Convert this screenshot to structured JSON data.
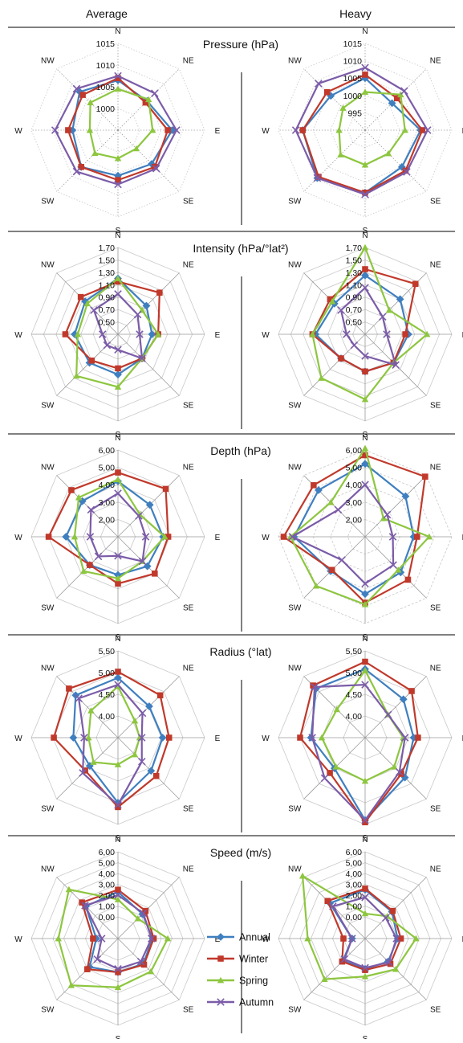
{
  "column_titles": [
    "Average",
    "Heavy"
  ],
  "directions": [
    "N",
    "NE",
    "E",
    "SE",
    "S",
    "SW",
    "W",
    "NW"
  ],
  "colors": {
    "Annual": "#3f7fbf",
    "Winter": "#c0392b",
    "Spring": "#8dc63f",
    "Autumn": "#7b5ca8",
    "grid": "#c8c8c8",
    "divider": "#000000"
  },
  "legend": [
    {
      "name": "Annual",
      "marker": "diamond",
      "color": "#3f7fbf"
    },
    {
      "name": "Winter",
      "marker": "square",
      "color": "#c0392b"
    },
    {
      "name": "Spring",
      "marker": "triangle",
      "color": "#8dc63f"
    },
    {
      "name": "Autumn",
      "marker": "x",
      "color": "#7b5ca8"
    }
  ],
  "chart_data": [
    {
      "type": "radar",
      "title": "Pressure (hPa)",
      "column": "Average",
      "categories": [
        "N",
        "NE",
        "E",
        "SE",
        "S",
        "SW",
        "W",
        "NW"
      ],
      "range": [
        995,
        1015
      ],
      "tick_labels": [
        "1000",
        "1005",
        "1010",
        "1015"
      ],
      "grid": "dotted-axes",
      "series": [
        {
          "name": "Annual",
          "values": [
            1006.5,
            1004.5,
            1007.5,
            1006,
            1005.5,
            1007,
            1005.5,
            1007.5
          ]
        },
        {
          "name": "Winter",
          "values": [
            1007,
            1004,
            1006.5,
            1007,
            1006.5,
            1007,
            1006.5,
            1006.5
          ]
        },
        {
          "name": "Spring",
          "values": [
            1004.5,
            1005,
            1003,
            1001,
            1001.5,
            1002.5,
            1001.5,
            1004
          ]
        },
        {
          "name": "Autumn",
          "values": [
            1007.5,
            1007,
            1008.5,
            1007.5,
            1007.5,
            1008.5,
            1009.5,
            1008.5
          ]
        }
      ]
    },
    {
      "type": "radar",
      "title": "",
      "column": "Heavy",
      "categories": [
        "N",
        "NE",
        "E",
        "SE",
        "S",
        "SW",
        "W",
        "NW"
      ],
      "range": [
        990,
        1015
      ],
      "tick_labels": [
        "995",
        "1000",
        "1005",
        "1010",
        "1015"
      ],
      "grid": "dotted-axes",
      "series": [
        {
          "name": "Annual",
          "values": [
            1005,
            1001,
            1006,
            1005,
            1008,
            1009.5,
            1008,
            1004
          ]
        },
        {
          "name": "Winter",
          "values": [
            1006,
            1003,
            1006.5,
            1006.5,
            1008,
            1009,
            1008,
            1005.5
          ]
        },
        {
          "name": "Spring",
          "values": [
            1001,
            1004.5,
            1001.5,
            999.5,
            1000,
            1000,
            997.5,
            999
          ]
        },
        {
          "name": "Autumn",
          "values": [
            1008,
            1006,
            1008,
            1007,
            1008.5,
            1009.5,
            1010,
            1009
          ]
        }
      ]
    },
    {
      "type": "radar",
      "title": "Intensity (hPa/°lat²)",
      "column": "Average",
      "categories": [
        "N",
        "NE",
        "E",
        "SE",
        "S",
        "SW",
        "W",
        "NW"
      ],
      "range": [
        0.3,
        1.7
      ],
      "tick_labels": [
        "0,50",
        "0,70",
        "0,90",
        "1,10",
        "1,30",
        "1,50",
        "1,70"
      ],
      "grid": "polygon",
      "series": [
        {
          "name": "Annual",
          "values": [
            1.2,
            0.95,
            0.85,
            0.85,
            0.95,
            0.95,
            1.0,
            1.05
          ]
        },
        {
          "name": "Winter",
          "values": [
            1.15,
            1.25,
            0.95,
            0.85,
            0.85,
            0.9,
            1.15,
            1.15
          ]
        },
        {
          "name": "Spring",
          "values": [
            1.2,
            0.85,
            0.95,
            0.85,
            1.15,
            1.25,
            0.95,
            1.0
          ]
        },
        {
          "name": "Autumn",
          "values": [
            0.95,
            0.75,
            0.65,
            0.85,
            0.55,
            0.55,
            0.55,
            0.85
          ]
        }
      ]
    },
    {
      "type": "radar",
      "title": "",
      "column": "Heavy",
      "categories": [
        "N",
        "NE",
        "E",
        "SE",
        "S",
        "SW",
        "W",
        "NW"
      ],
      "range": [
        0.3,
        1.7
      ],
      "tick_labels": [
        "0,50",
        "0,70",
        "0,90",
        "1,10",
        "1,30",
        "1,50",
        "1,70"
      ],
      "grid": "polygon",
      "series": [
        {
          "name": "Annual",
          "values": [
            1.25,
            1.1,
            1.0,
            0.95,
            0.9,
            0.85,
            1.1,
            1.0
          ]
        },
        {
          "name": "Winter",
          "values": [
            1.35,
            1.45,
            0.95,
            0.95,
            0.9,
            0.85,
            1.15,
            1.1
          ]
        },
        {
          "name": "Spring",
          "values": [
            1.7,
            0.85,
            1.3,
            0.95,
            1.35,
            1.3,
            1.15,
            1.05
          ]
        },
        {
          "name": "Autumn",
          "values": [
            1.05,
            0.7,
            0.65,
            1.0,
            0.65,
            0.55,
            0.6,
            0.85
          ]
        }
      ]
    },
    {
      "type": "radar",
      "title": "Depth (hPa)",
      "column": "Average",
      "categories": [
        "N",
        "NE",
        "E",
        "SE",
        "S",
        "SW",
        "W",
        "NW"
      ],
      "range": [
        1.0,
        6.0
      ],
      "tick_labels": [
        "2,00",
        "3,00",
        "4,00",
        "5,00",
        "6,00"
      ],
      "grid": "polygon",
      "series": [
        {
          "name": "Annual",
          "values": [
            4.2,
            3.6,
            3.6,
            3.4,
            3.2,
            3.3,
            4.0,
            3.9
          ]
        },
        {
          "name": "Winter",
          "values": [
            4.7,
            4.9,
            3.9,
            4.0,
            3.7,
            3.3,
            5.0,
            4.8
          ]
        },
        {
          "name": "Spring",
          "values": [
            4.3,
            2.8,
            3.7,
            3.0,
            3.4,
            3.8,
            3.5,
            4.2
          ]
        },
        {
          "name": "Autumn",
          "values": [
            3.5,
            2.7,
            2.6,
            3.0,
            2.1,
            2.6,
            2.6,
            3.2
          ]
        }
      ]
    },
    {
      "type": "radar",
      "title": "",
      "column": "Heavy",
      "categories": [
        "N",
        "NE",
        "E",
        "SE",
        "S",
        "SW",
        "W",
        "NW"
      ],
      "range": [
        1.0,
        6.0
      ],
      "tick_labels": [
        "2,00",
        "3,00",
        "4,00",
        "5,00",
        "6,00"
      ],
      "grid": "dashed-polygon",
      "series": [
        {
          "name": "Annual",
          "values": [
            5.2,
            4.3,
            3.8,
            3.9,
            4.3,
            3.8,
            5.1,
            4.8
          ]
        },
        {
          "name": "Winter",
          "values": [
            5.7,
            5.9,
            4.0,
            4.5,
            4.8,
            3.7,
            5.7,
            5.2
          ]
        },
        {
          "name": "Spring",
          "values": [
            6.1,
            2.5,
            4.7,
            3.7,
            4.9,
            5.0,
            5.3,
            3.8
          ]
        },
        {
          "name": "Autumn",
          "values": [
            4.0,
            2.8,
            2.6,
            3.3,
            3.7,
            2.9,
            5.2,
            3.2
          ]
        }
      ]
    },
    {
      "type": "radar",
      "title": "Radius (°lat)",
      "column": "Average",
      "categories": [
        "N",
        "NE",
        "E",
        "SE",
        "S",
        "SW",
        "W",
        "NW"
      ],
      "range": [
        3.5,
        5.5
      ],
      "tick_labels": [
        "4,00",
        "4,50",
        "5,00",
        "5,50"
      ],
      "grid": "polygon",
      "series": [
        {
          "name": "Annual",
          "values": [
            4.88,
            4.52,
            4.53,
            4.58,
            5.0,
            4.42,
            4.53,
            4.88
          ]
        },
        {
          "name": "Winter",
          "values": [
            5.02,
            4.88,
            4.68,
            4.75,
            5.1,
            4.57,
            4.98,
            5.1
          ]
        },
        {
          "name": "Spring",
          "values": [
            4.68,
            4.05,
            4.0,
            4.05,
            4.12,
            4.3,
            4.18,
            4.38
          ]
        },
        {
          "name": "Autumn",
          "values": [
            4.72,
            4.3,
            4.05,
            4.28,
            5.05,
            4.65,
            4.28,
            4.78
          ]
        }
      ]
    },
    {
      "type": "radar",
      "title": "",
      "column": "Heavy",
      "categories": [
        "N",
        "NE",
        "E",
        "SE",
        "S",
        "SW",
        "W",
        "NW"
      ],
      "range": [
        3.5,
        5.5
      ],
      "tick_labels": [
        "4,00",
        "4,50",
        "5,00",
        "5,50"
      ],
      "grid": "polygon",
      "series": [
        {
          "name": "Annual",
          "values": [
            5.08,
            4.75,
            4.62,
            4.8,
            5.4,
            4.5,
            4.75,
            5.1
          ]
        },
        {
          "name": "Winter",
          "values": [
            5.25,
            5.02,
            4.72,
            4.68,
            5.45,
            4.65,
            5.0,
            5.2
          ]
        },
        {
          "name": "Spring",
          "values": [
            5.05,
            4.25,
            4.38,
            4.45,
            4.5,
            4.45,
            4.5,
            4.42
          ]
        },
        {
          "name": "Autumn",
          "values": [
            4.72,
            4.25,
            4.42,
            4.62,
            5.4,
            4.82,
            4.72,
            5.15
          ]
        }
      ]
    },
    {
      "type": "radar",
      "title": "Speed (m/s)",
      "column": "Average",
      "categories": [
        "N",
        "NE",
        "E",
        "SE",
        "S",
        "SW",
        "W",
        "NW"
      ],
      "range": [
        -2.0,
        6.0
      ],
      "tick_labels": [
        "0,00",
        "1,00",
        "2,00",
        "3,00",
        "4,00",
        "5,00",
        "6,00"
      ],
      "grid": "polygon",
      "series": [
        {
          "name": "Annual",
          "values": [
            2.3,
            1.2,
            1.2,
            1.3,
            1.1,
            1.7,
            0.0,
            2.2
          ]
        },
        {
          "name": "Winter",
          "values": [
            2.5,
            1.6,
            1.3,
            1.4,
            1.1,
            2.0,
            0.3,
            2.7
          ]
        },
        {
          "name": "Spring",
          "values": [
            1.6,
            0.6,
            2.6,
            2.3,
            2.5,
            4.1,
            3.5,
            4.4
          ]
        },
        {
          "name": "Autumn",
          "values": [
            2.0,
            1.3,
            1.1,
            1.0,
            0.8,
            0.7,
            -0.5,
            2.3
          ]
        }
      ]
    },
    {
      "type": "radar",
      "title": "",
      "column": "Heavy",
      "categories": [
        "N",
        "NE",
        "E",
        "SE",
        "S",
        "SW",
        "W",
        "NW"
      ],
      "range": [
        -2.0,
        6.0
      ],
      "tick_labels": [
        "0,00",
        "1,00",
        "2,00",
        "3,00",
        "4,00",
        "5,00",
        "6,00"
      ],
      "grid": "polygon",
      "series": [
        {
          "name": "Annual",
          "values": [
            2.5,
            1.5,
            1.0,
            1.0,
            0.8,
            0.9,
            -0.8,
            2.6
          ]
        },
        {
          "name": "Winter",
          "values": [
            2.6,
            1.6,
            1.3,
            1.3,
            0.9,
            1.0,
            0.0,
            2.9
          ]
        },
        {
          "name": "Spring",
          "values": [
            0.3,
            0.9,
            2.7,
            2.0,
            1.5,
            3.3,
            3.3,
            6.5
          ]
        },
        {
          "name": "Autumn",
          "values": [
            1.8,
            0.7,
            0.9,
            1.1,
            0.7,
            0.7,
            -0.8,
            2.2
          ]
        }
      ]
    }
  ]
}
